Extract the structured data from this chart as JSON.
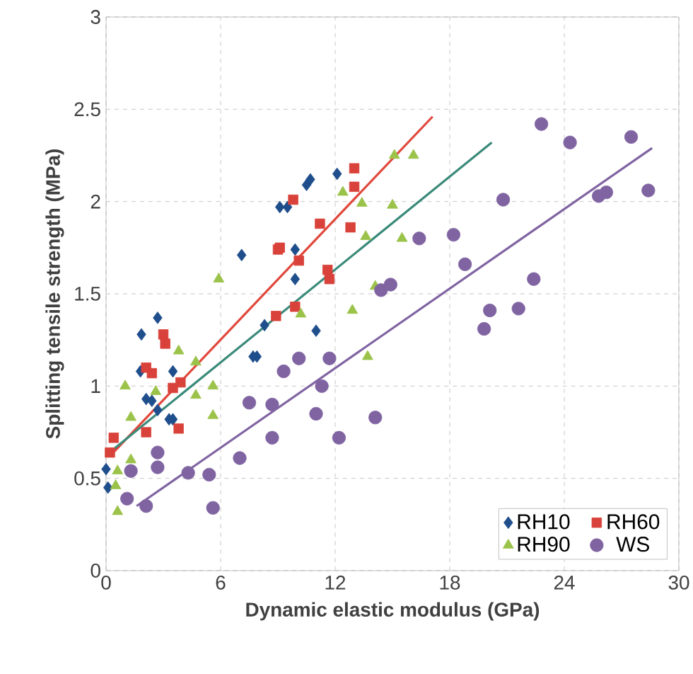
{
  "chart_data": {
    "type": "scatter",
    "xlabel": "Dynamic elastic modulus (GPa)",
    "ylabel": "Splitting tensile strength (MPa)",
    "xlim": [
      0,
      30
    ],
    "xticks": [
      0,
      6,
      12,
      18,
      24,
      30
    ],
    "ylim": [
      0,
      3
    ],
    "yticks": [
      0,
      0.5,
      1,
      1.5,
      2,
      2.5,
      3
    ],
    "grid": true,
    "legend": "bottom right",
    "series": [
      {
        "name": "RH10",
        "color": "#1f4e8c",
        "marker": "diamond",
        "x": [
          0,
          0.1,
          1.8,
          1.85,
          2.1,
          2.4,
          2.7,
          2.7,
          3.3,
          3.5,
          3.5,
          7.1,
          7.7,
          7.9,
          8.3,
          9.1,
          9.5,
          9.9,
          9.9,
          10.5,
          10.7,
          11,
          12.1
        ],
        "values": [
          0.55,
          0.45,
          1.08,
          1.28,
          0.93,
          0.92,
          1.37,
          0.87,
          0.82,
          1.08,
          0.82,
          1.71,
          1.16,
          1.16,
          1.33,
          1.97,
          1.97,
          1.58,
          1.74,
          2.09,
          2.12,
          1.3,
          2.15
        ]
      },
      {
        "name": "RH60",
        "color": "#d9423a",
        "marker": "square",
        "x": [
          0.2,
          0.4,
          2.1,
          2.1,
          2.4,
          3.0,
          3.1,
          3.5,
          3.8,
          3.9,
          8.9,
          9.0,
          9.1,
          9.8,
          9.9,
          10.1,
          11.2,
          11.6,
          11.7,
          12.8,
          13.0,
          13.0
        ],
        "values": [
          0.64,
          0.72,
          1.1,
          0.75,
          1.07,
          1.28,
          1.23,
          0.99,
          0.77,
          1.02,
          1.38,
          1.74,
          1.75,
          2.01,
          1.43,
          1.68,
          1.88,
          1.63,
          1.58,
          1.86,
          2.18,
          2.08
        ]
      },
      {
        "name": "RH90",
        "color": "#9bc34a",
        "marker": "triangle",
        "x": [
          0.5,
          0.6,
          0.6,
          1.0,
          1.3,
          1.3,
          2.6,
          3.8,
          4.7,
          4.7,
          5.6,
          5.6,
          5.9,
          10.2,
          12.4,
          12.9,
          13.4,
          13.6,
          13.7,
          14.1,
          15.0,
          15.1,
          15.5,
          16.1
        ],
        "values": [
          0.46,
          0.54,
          0.32,
          1.0,
          0.83,
          0.6,
          0.97,
          1.19,
          1.13,
          0.95,
          1.0,
          0.84,
          1.58,
          1.39,
          2.05,
          1.41,
          1.99,
          1.81,
          1.16,
          1.54,
          1.98,
          2.25,
          1.8,
          2.25
        ]
      },
      {
        "name": "WS",
        "color": "#8064a2",
        "marker": "circle",
        "x": [
          1.1,
          1.3,
          2.1,
          2.7,
          2.7,
          4.3,
          5.4,
          5.6,
          7.0,
          7.5,
          8.7,
          8.7,
          9.3,
          10.1,
          11.0,
          11.3,
          11.7,
          12.2,
          14.1,
          14.4,
          14.9,
          16.4,
          18.2,
          18.8,
          19.8,
          20.1,
          20.8,
          21.6,
          22.4,
          22.8,
          24.3,
          25.8,
          26.2,
          27.5,
          28.4
        ],
        "values": [
          0.39,
          0.54,
          0.35,
          0.64,
          0.56,
          0.53,
          0.52,
          0.34,
          0.61,
          0.91,
          0.9,
          0.72,
          1.08,
          1.15,
          0.85,
          1.0,
          1.15,
          0.72,
          0.83,
          1.52,
          1.55,
          1.8,
          1.82,
          1.66,
          1.31,
          1.41,
          2.01,
          1.42,
          1.58,
          2.42,
          2.32,
          2.03,
          2.05,
          2.35,
          2.06
        ]
      },
      {
        "type": "line",
        "color": "#e0483c",
        "marker": "none",
        "x": [
          0.2,
          17.1
        ],
        "values": [
          0.62,
          2.46
        ]
      },
      {
        "type": "line",
        "color": "#3a8a7a",
        "marker": "none",
        "x": [
          0.3,
          20.2
        ],
        "values": [
          0.65,
          2.32
        ]
      },
      {
        "type": "line",
        "color": "#8064a2",
        "marker": "none",
        "x": [
          1.6,
          28.6
        ],
        "values": [
          0.35,
          2.29
        ]
      }
    ]
  }
}
